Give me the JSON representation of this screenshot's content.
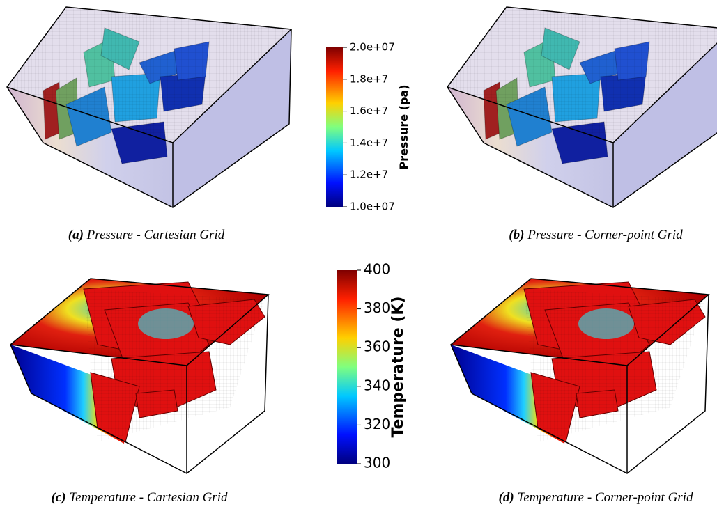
{
  "panels": [
    {
      "label": "(a)",
      "caption": "Pressure - Cartesian Grid"
    },
    {
      "label": "(b)",
      "caption": "Pressure - Corner-point Grid"
    },
    {
      "label": "(c)",
      "caption": "Temperature - Cartesian Grid"
    },
    {
      "label": "(d)",
      "caption": "Temperature - Corner-point Grid"
    }
  ],
  "colorbars": [
    {
      "title": "Pressure (pa)",
      "range": [
        10000000,
        20000000
      ],
      "ticks": [
        {
          "value": 10000000,
          "label": "1.0e+07"
        },
        {
          "value": 12000000,
          "label": "1.2e+7"
        },
        {
          "value": 14000000,
          "label": "1.4e+7"
        },
        {
          "value": 16000000,
          "label": "1.6e+7"
        },
        {
          "value": 18000000,
          "label": "1.8e+7"
        },
        {
          "value": 20000000,
          "label": "2.0e+07"
        }
      ]
    },
    {
      "title": "Temperature (K)",
      "range": [
        300,
        400
      ],
      "ticks": [
        300,
        320,
        340,
        360,
        380,
        400
      ]
    }
  ]
}
